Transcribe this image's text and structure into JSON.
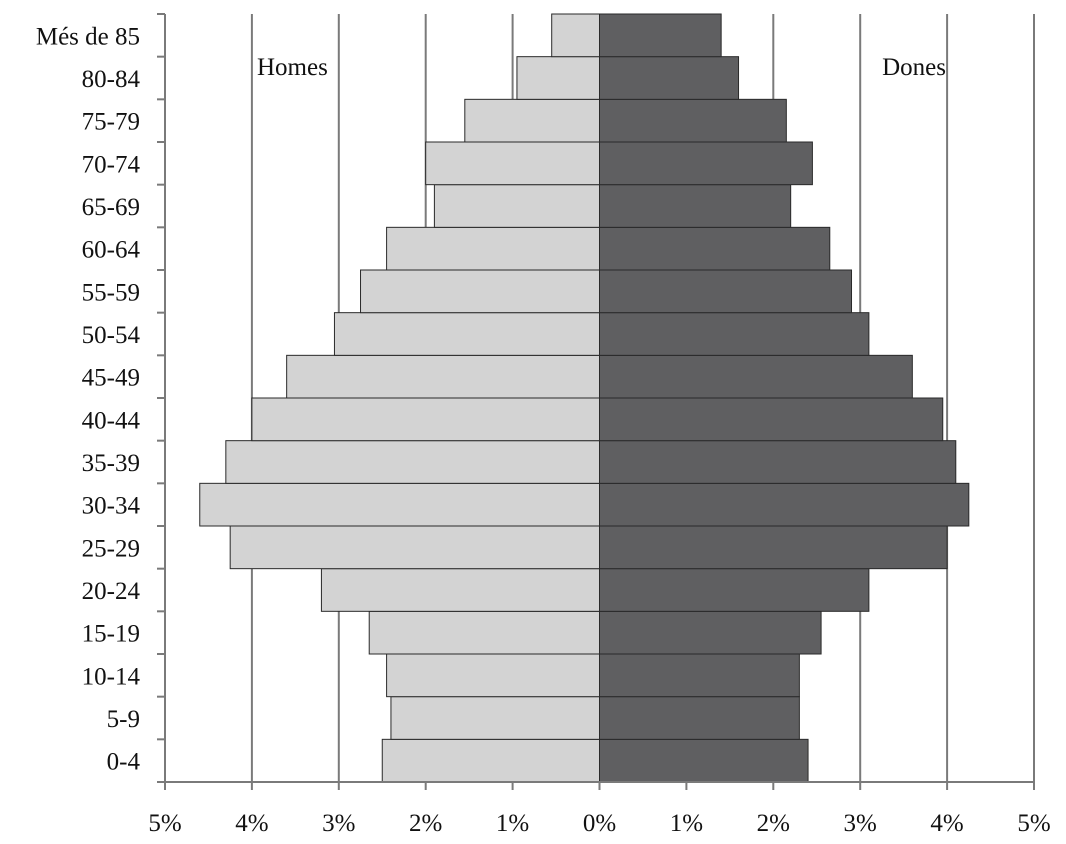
{
  "chart_data": {
    "type": "bar",
    "orientation": "horizontal",
    "categories": [
      "0-4",
      "5-9",
      "10-14",
      "15-19",
      "20-24",
      "25-29",
      "30-34",
      "35-39",
      "40-44",
      "45-49",
      "50-54",
      "55-59",
      "60-64",
      "65-69",
      "70-74",
      "75-79",
      "80-84",
      "Més de 85"
    ],
    "series": [
      {
        "name": "Homes",
        "color": "#d3d3d3",
        "values": [
          2.5,
          2.4,
          2.45,
          2.65,
          3.2,
          4.25,
          4.6,
          4.3,
          4.0,
          3.6,
          3.05,
          2.75,
          2.45,
          1.9,
          2.0,
          1.55,
          0.95,
          0.55
        ]
      },
      {
        "name": "Dones",
        "color": "#5f5f61",
        "values": [
          2.4,
          2.3,
          2.3,
          2.55,
          3.1,
          4.0,
          4.25,
          4.1,
          3.95,
          3.6,
          3.1,
          2.9,
          2.65,
          2.2,
          2.45,
          2.15,
          1.6,
          1.4
        ]
      }
    ],
    "x_ticks": [
      "5%",
      "4%",
      "3%",
      "2%",
      "1%",
      "0%",
      "1%",
      "2%",
      "3%",
      "4%",
      "5%"
    ],
    "xlim": [
      -5,
      5
    ],
    "grid": "vertical",
    "title": "",
    "xlabel": "",
    "ylabel": ""
  }
}
